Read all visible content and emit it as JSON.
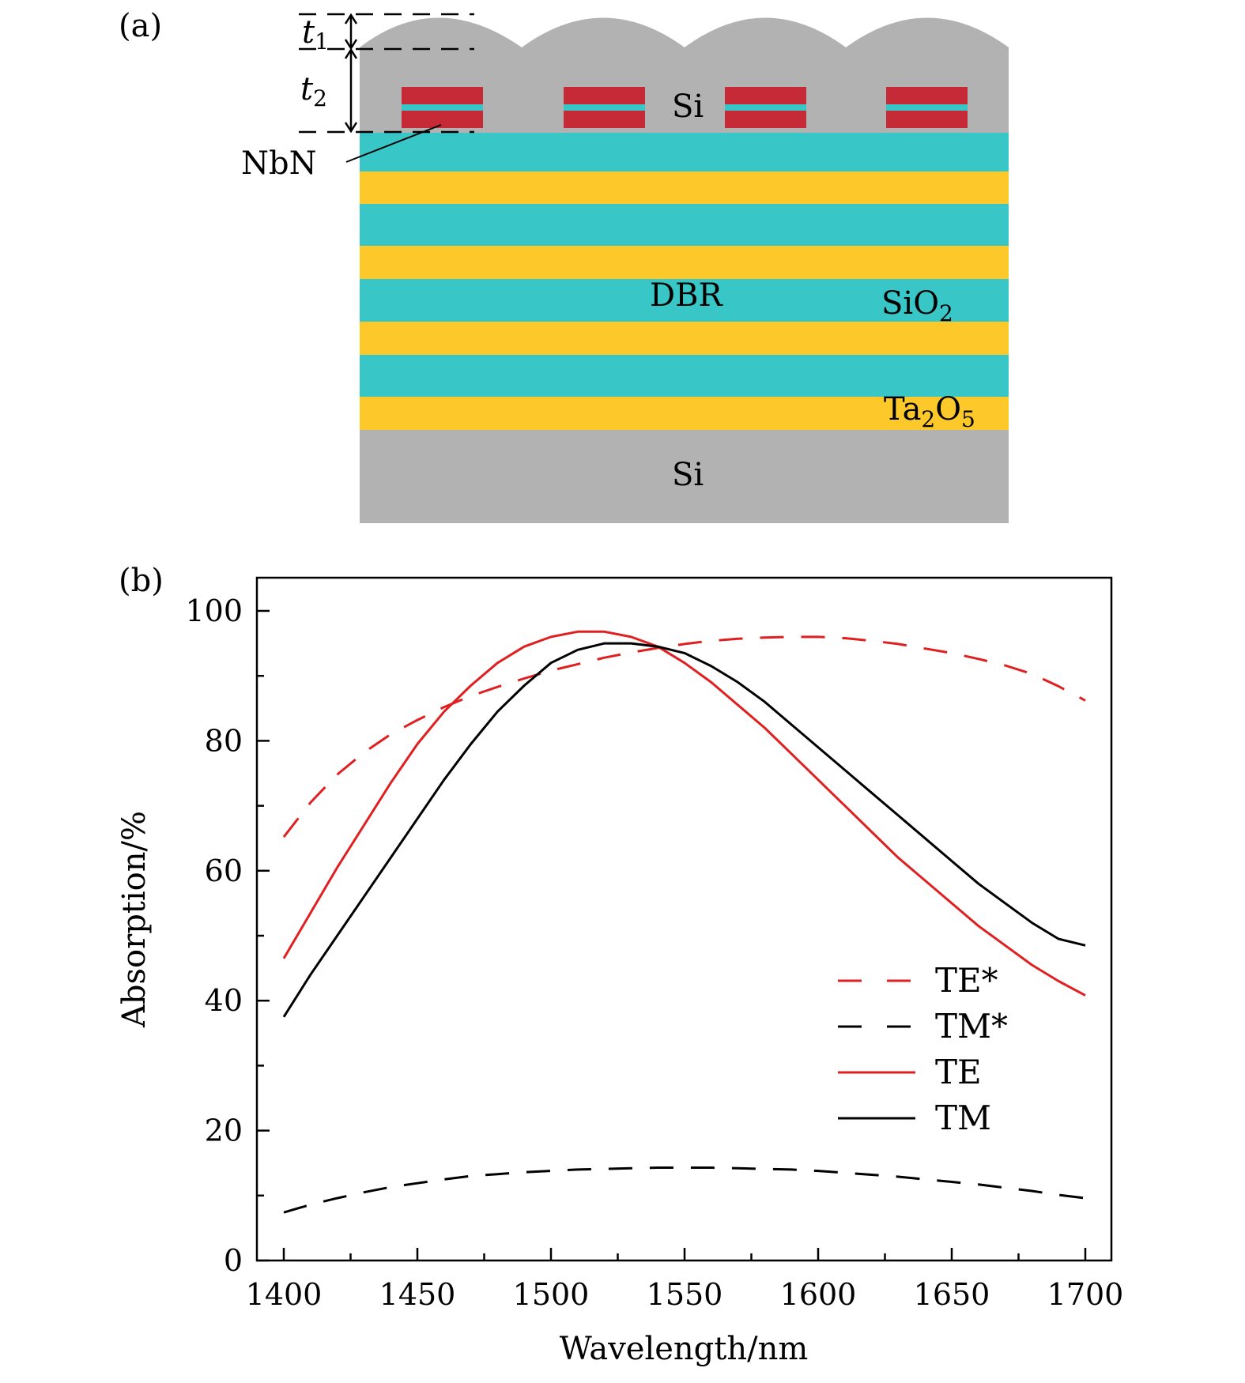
{
  "panel_a": {
    "label": "(a)",
    "t1": {
      "main": "t",
      "sub": "1"
    },
    "t2": {
      "main": "t",
      "sub": "2"
    },
    "nbn": "NbN",
    "si_top": "Si",
    "dbr": "DBR",
    "sio2": {
      "main": "SiO",
      "sub": "2"
    },
    "ta2o5": {
      "a": "Ta",
      "sub1": "2",
      "b": "O",
      "sub2": "5"
    },
    "si_bottom": "Si",
    "colors": {
      "si": "#b2b2b2",
      "sio2": "#38c6c6",
      "ta2o5": "#fdc82a",
      "nbn": "#c72a37"
    }
  },
  "chart_data": {
    "label": "(b)",
    "type": "line",
    "xlabel": "Wavelength/nm",
    "ylabel": "Absorption/%",
    "xlim": [
      1390,
      1700
    ],
    "ylim": [
      0,
      105
    ],
    "xticks": [
      1400,
      1450,
      1500,
      1550,
      1600,
      1650,
      1700
    ],
    "yticks": [
      0,
      20,
      40,
      60,
      80,
      100
    ],
    "legend_position": "lower-right",
    "series": [
      {
        "name": "TE*",
        "color": "#e02020",
        "dash": true,
        "x": [
          1400,
          1410,
          1420,
          1430,
          1440,
          1450,
          1460,
          1470,
          1480,
          1490,
          1500,
          1510,
          1520,
          1530,
          1540,
          1550,
          1560,
          1570,
          1580,
          1590,
          1600,
          1610,
          1620,
          1630,
          1640,
          1650,
          1660,
          1670,
          1680,
          1690,
          1700
        ],
        "y": [
          65.2,
          70.5,
          74.8,
          78.2,
          81.0,
          83.2,
          85.2,
          86.9,
          88.3,
          89.6,
          90.8,
          91.8,
          92.8,
          93.6,
          94.3,
          94.9,
          95.4,
          95.7,
          95.9,
          96.0,
          96.0,
          95.8,
          95.4,
          94.9,
          94.2,
          93.5,
          92.6,
          91.6,
          90.3,
          88.4,
          86.2
        ]
      },
      {
        "name": "TM*",
        "color": "#000000",
        "dash": true,
        "x": [
          1400,
          1410,
          1420,
          1430,
          1440,
          1450,
          1460,
          1470,
          1480,
          1490,
          1500,
          1510,
          1520,
          1530,
          1540,
          1550,
          1560,
          1570,
          1580,
          1590,
          1600,
          1610,
          1620,
          1630,
          1640,
          1650,
          1660,
          1670,
          1680,
          1690,
          1700
        ],
        "y": [
          7.4,
          8.6,
          9.6,
          10.5,
          11.3,
          11.9,
          12.5,
          13.0,
          13.3,
          13.6,
          13.8,
          14.0,
          14.1,
          14.2,
          14.3,
          14.3,
          14.3,
          14.2,
          14.1,
          14.0,
          13.8,
          13.5,
          13.2,
          12.9,
          12.5,
          12.1,
          11.7,
          11.2,
          10.7,
          10.1,
          9.6
        ]
      },
      {
        "name": "TE",
        "color": "#e02020",
        "dash": false,
        "x": [
          1400,
          1410,
          1420,
          1430,
          1440,
          1450,
          1460,
          1470,
          1480,
          1490,
          1500,
          1510,
          1520,
          1530,
          1540,
          1550,
          1560,
          1570,
          1580,
          1590,
          1600,
          1610,
          1620,
          1630,
          1640,
          1650,
          1660,
          1670,
          1680,
          1690,
          1700
        ],
        "y": [
          46.5,
          53.5,
          60.5,
          67.0,
          73.5,
          79.5,
          84.5,
          88.5,
          92.0,
          94.5,
          96.0,
          96.8,
          96.8,
          96.0,
          94.5,
          92.0,
          89.0,
          85.5,
          82.0,
          78.0,
          74.0,
          70.0,
          66.0,
          62.0,
          58.5,
          55.0,
          51.5,
          48.5,
          45.5,
          43.0,
          40.8
        ]
      },
      {
        "name": "TM",
        "color": "#000000",
        "dash": false,
        "x": [
          1400,
          1410,
          1420,
          1430,
          1440,
          1450,
          1460,
          1470,
          1480,
          1490,
          1500,
          1510,
          1520,
          1530,
          1540,
          1550,
          1560,
          1570,
          1580,
          1590,
          1600,
          1610,
          1620,
          1630,
          1640,
          1650,
          1660,
          1670,
          1680,
          1690,
          1700
        ],
        "y": [
          37.5,
          44.0,
          50.0,
          56.0,
          62.0,
          68.0,
          74.0,
          79.5,
          84.5,
          88.5,
          92.0,
          94.0,
          95.0,
          95.0,
          94.5,
          93.5,
          91.5,
          89.0,
          86.0,
          82.5,
          79.0,
          75.5,
          72.0,
          68.5,
          65.0,
          61.5,
          58.0,
          55.0,
          52.0,
          49.5,
          48.5
        ]
      }
    ]
  }
}
